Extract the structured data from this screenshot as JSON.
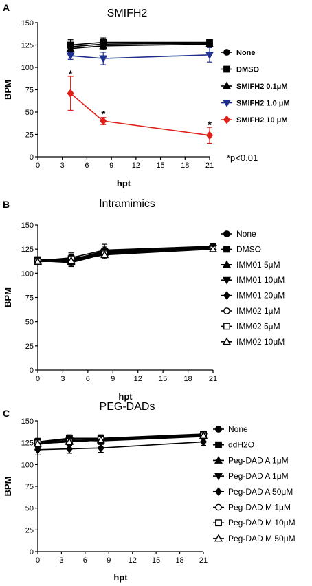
{
  "chart_data": [
    {
      "type": "line",
      "panel": "A",
      "title": "SMIFH2",
      "xlabel": "hpt",
      "ylabel": "BPM",
      "xlim": [
        0,
        21
      ],
      "ylim": [
        0,
        150
      ],
      "xticks": [
        0,
        3,
        6,
        9,
        12,
        15,
        18,
        21
      ],
      "yticks": [
        0,
        25,
        50,
        75,
        100,
        125,
        150
      ],
      "x": [
        4,
        8,
        21
      ],
      "legend_placement": "right",
      "legend_bold": true,
      "series": [
        {
          "name": "None",
          "values": [
            123,
            126,
            127
          ],
          "errors": [
            4,
            4,
            3
          ],
          "color": "#000000",
          "marker": "circle-filled"
        },
        {
          "name": "DMSO",
          "values": [
            125,
            128,
            128
          ],
          "errors": [
            6,
            5,
            3
          ],
          "color": "#000000",
          "marker": "square-filled"
        },
        {
          "name": "SMIFH2 0.1μM",
          "values": [
            121,
            124,
            126
          ],
          "errors": [
            5,
            4,
            3
          ],
          "color": "#000000",
          "marker": "triangle-up-filled"
        },
        {
          "name": "SMIFH2 1.0 μM",
          "values": [
            113,
            110,
            114
          ],
          "errors": [
            4,
            7,
            8
          ],
          "color": "#1f2f8f",
          "marker": "triangle-down-filled"
        },
        {
          "name": "SMIFH2 10 μM",
          "values": [
            71,
            40,
            24
          ],
          "errors": [
            19,
            4,
            9
          ],
          "color": "#e0201b",
          "marker": "diamond-filled"
        }
      ],
      "annotations": [
        {
          "text": "*",
          "x": 4,
          "y": 95
        },
        {
          "text": "*",
          "x": 8,
          "y": 50
        },
        {
          "text": "*",
          "x": 21,
          "y": 38
        }
      ],
      "note": "*p<0.01"
    },
    {
      "type": "line",
      "panel": "B",
      "title": "Intramimics",
      "xlabel": "hpt",
      "ylabel": "BPM",
      "xlim": [
        0,
        21
      ],
      "ylim": [
        0,
        150
      ],
      "xticks": [
        0,
        3,
        6,
        9,
        12,
        15,
        18,
        21
      ],
      "yticks": [
        0,
        25,
        50,
        75,
        100,
        125,
        150
      ],
      "x": [
        0,
        4,
        8,
        21
      ],
      "legend_placement": "right",
      "legend_bold": false,
      "series": [
        {
          "name": "None",
          "values": [
            113,
            116,
            124,
            128
          ],
          "errors": [
            3,
            5,
            6,
            3
          ],
          "color": "#000000",
          "marker": "circle-filled"
        },
        {
          "name": "DMSO",
          "values": [
            114,
            114,
            123,
            127
          ],
          "errors": [
            3,
            4,
            5,
            3
          ],
          "color": "#000000",
          "marker": "square-filled"
        },
        {
          "name": "IMM01 5μM",
          "values": [
            113,
            112,
            121,
            127
          ],
          "errors": [
            3,
            4,
            4,
            3
          ],
          "color": "#000000",
          "marker": "triangle-up-filled"
        },
        {
          "name": "IMM01 10μM",
          "values": [
            112,
            113,
            122,
            126
          ],
          "errors": [
            3,
            4,
            4,
            3
          ],
          "color": "#000000",
          "marker": "triangle-down-filled"
        },
        {
          "name": "IMM01 20μM",
          "values": [
            113,
            111,
            120,
            126
          ],
          "errors": [
            3,
            4,
            4,
            3
          ],
          "color": "#000000",
          "marker": "diamond-filled"
        },
        {
          "name": "IMM02 1μM",
          "values": [
            112,
            114,
            122,
            127
          ],
          "errors": [
            3,
            4,
            4,
            3
          ],
          "color": "#000000",
          "marker": "circle-open"
        },
        {
          "name": "IMM02 5μM",
          "values": [
            113,
            115,
            121,
            126
          ],
          "errors": [
            3,
            4,
            4,
            3
          ],
          "color": "#000000",
          "marker": "square-open"
        },
        {
          "name": "IMM02 10μM",
          "values": [
            112,
            113,
            119,
            125
          ],
          "errors": [
            3,
            4,
            4,
            3
          ],
          "color": "#000000",
          "marker": "triangle-up-open"
        }
      ]
    },
    {
      "type": "line",
      "panel": "C",
      "title": "PEG-DADs",
      "xlabel": "hpt",
      "ylabel": "BPM",
      "xlim": [
        0,
        21
      ],
      "ylim": [
        0,
        150
      ],
      "xticks": [
        0,
        3,
        6,
        9,
        12,
        15,
        18,
        21
      ],
      "yticks": [
        0,
        25,
        50,
        75,
        100,
        125,
        150
      ],
      "x": [
        0,
        4,
        8,
        21
      ],
      "legend_placement": "right",
      "legend_bold": false,
      "series": [
        {
          "name": "None",
          "values": [
            125,
            129,
            129,
            134
          ],
          "errors": [
            4,
            4,
            4,
            3
          ],
          "color": "#000000",
          "marker": "circle-filled"
        },
        {
          "name": "ddH2O",
          "values": [
            126,
            130,
            130,
            135
          ],
          "errors": [
            4,
            4,
            4,
            3
          ],
          "color": "#000000",
          "marker": "square-filled"
        },
        {
          "name": "Peg-DAD A 1μM",
          "values": [
            124,
            127,
            128,
            133
          ],
          "errors": [
            4,
            4,
            4,
            3
          ],
          "color": "#000000",
          "marker": "triangle-up-filled"
        },
        {
          "name": "Peg-DAD A 1μM",
          "values": [
            123,
            128,
            127,
            132
          ],
          "errors": [
            4,
            4,
            4,
            3
          ],
          "color": "#000000",
          "marker": "triangle-down-filled"
        },
        {
          "name": "Peg-DAD A 50μM",
          "values": [
            117,
            118,
            119,
            126
          ],
          "errors": [
            6,
            5,
            5,
            4
          ],
          "color": "#000000",
          "marker": "diamond-filled"
        },
        {
          "name": "Peg-DAD M 1μM",
          "values": [
            124,
            126,
            128,
            133
          ],
          "errors": [
            4,
            4,
            4,
            3
          ],
          "color": "#000000",
          "marker": "circle-open"
        },
        {
          "name": "Peg-DAD M 10μM",
          "values": [
            125,
            127,
            129,
            134
          ],
          "errors": [
            4,
            4,
            4,
            3
          ],
          "color": "#000000",
          "marker": "square-open"
        },
        {
          "name": "Peg-DAD M 50μM",
          "values": [
            124,
            126,
            128,
            133
          ],
          "errors": [
            4,
            4,
            4,
            3
          ],
          "color": "#000000",
          "marker": "triangle-up-open"
        }
      ]
    }
  ]
}
